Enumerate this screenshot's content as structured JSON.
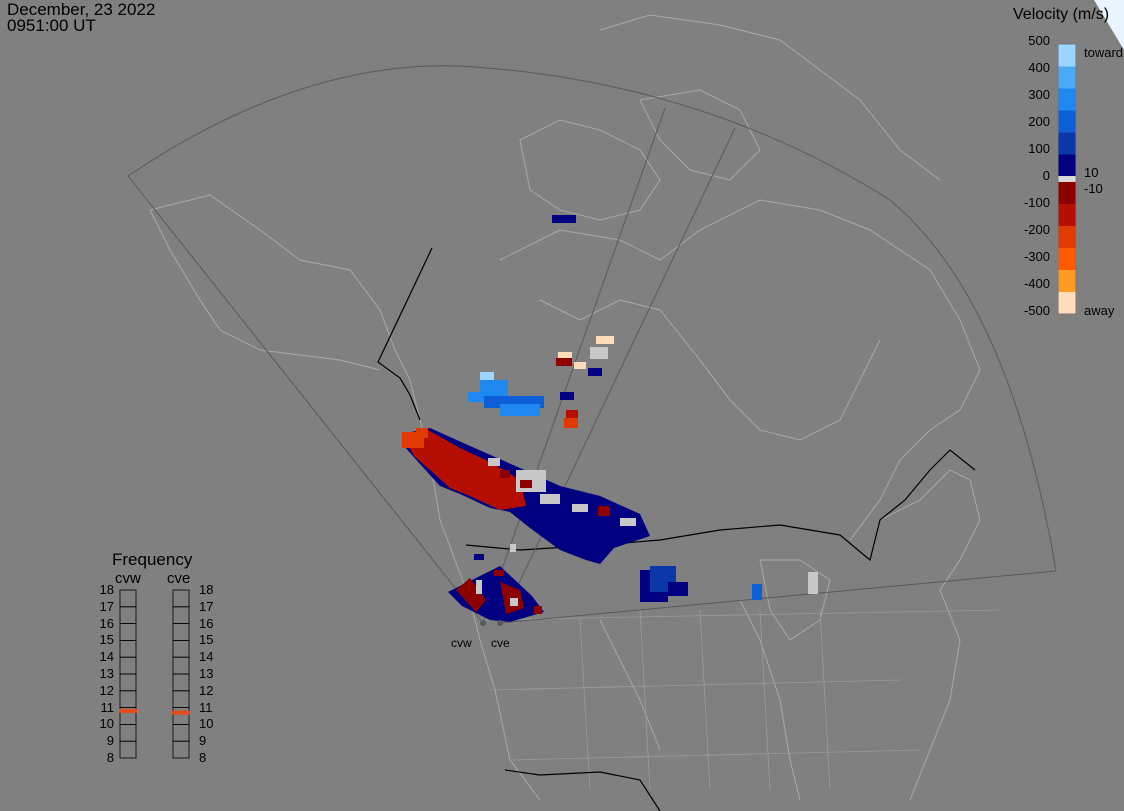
{
  "header": {
    "date": "December, 23 2022",
    "time": "0951:00 UT"
  },
  "colorbar": {
    "title": "Velocity (m/s)",
    "ticks": [
      "500",
      "400",
      "300",
      "200",
      "100",
      "0",
      "-100",
      "-200",
      "-300",
      "-400",
      "-500"
    ],
    "inner_labels": [
      "10",
      "-10"
    ],
    "toward_label": "toward",
    "away_label": "away",
    "colors": [
      "#ffddbb",
      "#ff9a22",
      "#ff5a00",
      "#e03a00",
      "#b40f00",
      "#8c0000",
      "#000080",
      "#0a38a8",
      "#0d5fd8",
      "#1e88f0",
      "#4aaaf8",
      "#9ad6ff"
    ]
  },
  "frequency": {
    "title": "Frequency",
    "columns": [
      {
        "label": "cvw",
        "value_mhz": 10.8
      },
      {
        "label": "cve",
        "value_mhz": 10.7
      }
    ],
    "scale": [
      "18",
      "17",
      "16",
      "15",
      "14",
      "13",
      "12",
      "11",
      "10",
      "9",
      "8"
    ],
    "marker_color": "#e84a1a"
  },
  "radar_sites": [
    "cvw",
    "cve"
  ],
  "map": {
    "background": "#808080",
    "land_outline": "#a8a8a8",
    "border_color": "#000000",
    "fov_color": "#5a5a5a"
  }
}
